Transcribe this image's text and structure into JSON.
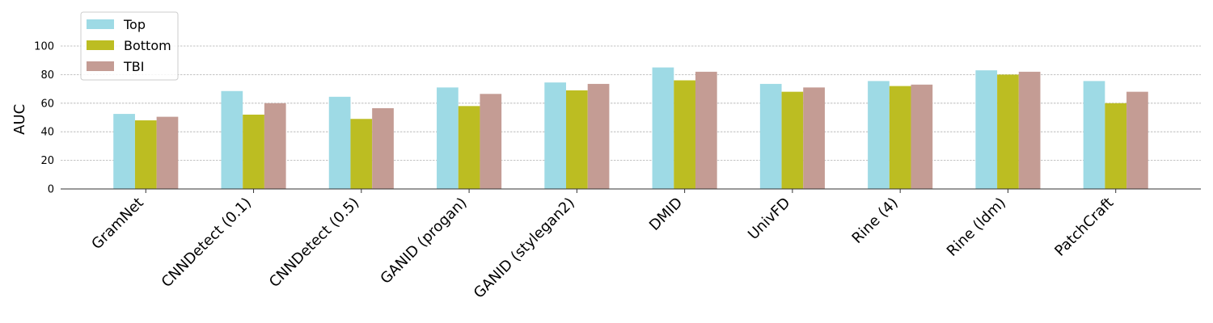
{
  "chart_data": {
    "type": "bar",
    "y_label": "AUC",
    "categories": [
      "GramNet",
      "CNNDetect (0.1)",
      "CNNDetect (0.5)",
      "GANID (progan)",
      "GANID (stylegan2)",
      "DMID",
      "UnivFD",
      "Rine (4)",
      "Rine (ldm)",
      "PatchCraft"
    ],
    "series": [
      {
        "name": "Top",
        "color": "#9edae5",
        "values": [
          52.5,
          68.5,
          64.5,
          71,
          74.5,
          85,
          73.5,
          75.5,
          83,
          75.5
        ]
      },
      {
        "name": "Bottom",
        "color": "#bcbd22",
        "values": [
          48,
          52,
          49,
          58,
          69,
          76,
          68,
          72,
          80,
          60
        ]
      },
      {
        "name": "TBI",
        "color": "#c49c94",
        "values": [
          50.5,
          60,
          56.5,
          66.5,
          73.5,
          82,
          71,
          73,
          82,
          68
        ]
      }
    ],
    "ylim": [
      0,
      120
    ],
    "yticks": [
      0,
      20,
      40,
      60,
      80,
      100
    ],
    "grid": true,
    "legend": "upper-left"
  }
}
